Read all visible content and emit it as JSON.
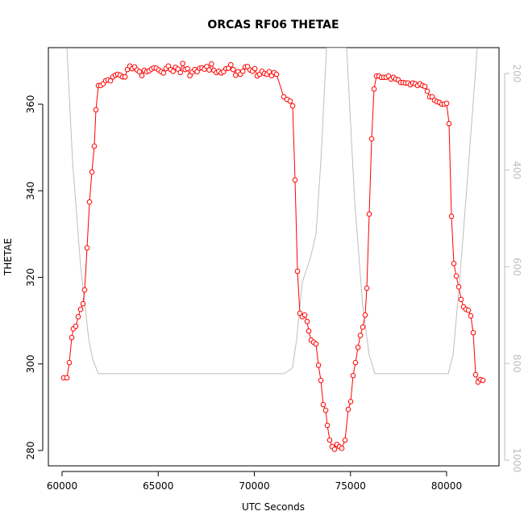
{
  "chart_data": {
    "type": "line",
    "title": "ORCAS RF06 THETAE",
    "xlabel": "UTC Seconds",
    "ylabel": "THETAE",
    "xlim": [
      59287,
      82725
    ],
    "xticks": [
      60000,
      65000,
      70000,
      75000,
      80000
    ],
    "ylim": [
      276.46,
      373.06
    ],
    "yticks": [
      280,
      300,
      320,
      340,
      360
    ],
    "y2lim": [
      1011.7,
      146.6
    ],
    "y2ticks": [
      200,
      400,
      600,
      800,
      1000
    ],
    "series": [
      {
        "color": "#ff0000",
        "markers": true,
        "x": [
          60084,
          60252,
          60377,
          60503,
          60587,
          60713,
          60839,
          60964,
          61090,
          61174,
          61300,
          61426,
          61551,
          61677,
          61761,
          61887,
          62013,
          62138,
          62264,
          62390,
          62516,
          62642,
          62767,
          62893,
          63019,
          63145,
          63270,
          63400,
          63525,
          63650,
          63775,
          63900,
          64025,
          64150,
          64275,
          64400,
          64525,
          64650,
          64775,
          64900,
          65025,
          65150,
          65275,
          65400,
          65525,
          65650,
          65775,
          65900,
          66025,
          66150,
          66275,
          66400,
          66525,
          66650,
          66775,
          66900,
          67025,
          67150,
          67275,
          67400,
          67525,
          67650,
          67775,
          67900,
          68025,
          68150,
          68275,
          68400,
          68525,
          68650,
          68775,
          68900,
          69025,
          69150,
          69275,
          69400,
          69525,
          69650,
          69775,
          69900,
          70025,
          70150,
          70275,
          70400,
          70525,
          70650,
          70775,
          70900,
          71025,
          71150,
          71530,
          71698,
          71866,
          71992,
          72117,
          72243,
          72369,
          72495,
          72621,
          72746,
          72830,
          72956,
          73082,
          73208,
          73333,
          73459,
          73585,
          73711,
          73795,
          73920,
          74046,
          74172,
          74298,
          74423,
          74549,
          74717,
          74885,
          75010,
          75136,
          75262,
          75388,
          75513,
          75639,
          75765,
          75849,
          75975,
          76101,
          76226,
          76352,
          76478,
          76604,
          76730,
          76855,
          76981,
          77107,
          77233,
          77358,
          77484,
          77610,
          77736,
          77862,
          77987,
          78113,
          78239,
          78365,
          78491,
          78616,
          78742,
          78868,
          78994,
          79119,
          79245,
          79371,
          79497,
          79623,
          79748,
          79874,
          80000,
          80126,
          80252,
          80377,
          80503,
          80629,
          80755,
          80881,
          81006,
          81132,
          81258,
          81384,
          81509,
          81635,
          81761,
          81887
        ],
        "values": [
          296.8,
          296.8,
          300.3,
          306.1,
          308.1,
          308.7,
          310.9,
          312.6,
          313.9,
          317.1,
          326.8,
          337.4,
          344.3,
          350.3,
          358.7,
          364.3,
          364.3,
          364.7,
          365.4,
          365.6,
          365.4,
          366.3,
          366.7,
          366.9,
          366.7,
          366.3,
          366.3,
          368.0,
          368.8,
          368.2,
          368.6,
          367.9,
          367.5,
          366.6,
          367.8,
          367.5,
          367.7,
          368.1,
          368.4,
          368.3,
          367.9,
          367.5,
          367.2,
          368.2,
          368.8,
          368.0,
          367.6,
          368.5,
          368.1,
          367.3,
          369.4,
          368.0,
          368.2,
          366.6,
          367.4,
          368.0,
          367.5,
          368.3,
          368.4,
          368.1,
          368.7,
          367.9,
          369.3,
          367.8,
          367.3,
          367.6,
          367.2,
          367.5,
          368.2,
          368.3,
          369.1,
          368.0,
          366.7,
          367.5,
          366.9,
          367.6,
          368.6,
          368.7,
          367.9,
          367.6,
          368.2,
          366.5,
          366.9,
          367.6,
          367.1,
          366.9,
          367.5,
          366.6,
          367.3,
          366.9,
          361.7,
          361.1,
          360.7,
          359.6,
          342.5,
          321.4,
          311.7,
          310.9,
          311.3,
          309.8,
          307.6,
          305.5,
          305.0,
          304.6,
          299.7,
          296.2,
          290.6,
          289.3,
          285.8,
          282.4,
          280.9,
          280.3,
          281.4,
          280.9,
          280.5,
          282.4,
          289.5,
          291.3,
          297.3,
          300.3,
          303.8,
          306.6,
          308.5,
          311.3,
          317.5,
          334.6,
          352.0,
          363.5,
          366.5,
          366.5,
          366.2,
          366.2,
          366.2,
          366.5,
          365.8,
          366.2,
          365.8,
          365.6,
          365.0,
          365.0,
          364.9,
          364.9,
          364.5,
          364.9,
          364.7,
          364.3,
          364.7,
          364.3,
          364.1,
          363.0,
          361.7,
          361.7,
          360.9,
          360.6,
          360.4,
          360.0,
          360.0,
          360.2,
          355.5,
          334.1,
          323.2,
          320.3,
          317.8,
          314.9,
          313.2,
          312.6,
          312.4,
          311.1,
          307.2,
          297.5,
          295.8,
          296.4,
          296.2
        ]
      },
      {
        "color": "#bebebe",
        "axis": "y2",
        "markers": false,
        "x": [
          60252,
          60545,
          60964,
          61384,
          61593,
          61887,
          71530,
          71866,
          71992,
          72201,
          72495,
          72914,
          73208,
          73459,
          73753,
          74801,
          75220,
          75639,
          75975,
          76268,
          80084,
          80335,
          80671,
          81090,
          81593
        ],
        "values": [
          147,
          382,
          599,
          749,
          791,
          821,
          821,
          813,
          808,
          749,
          632,
          582,
          532,
          382,
          147,
          147,
          465,
          682,
          783,
          821,
          821,
          783,
          632,
          415,
          147
        ]
      }
    ]
  }
}
